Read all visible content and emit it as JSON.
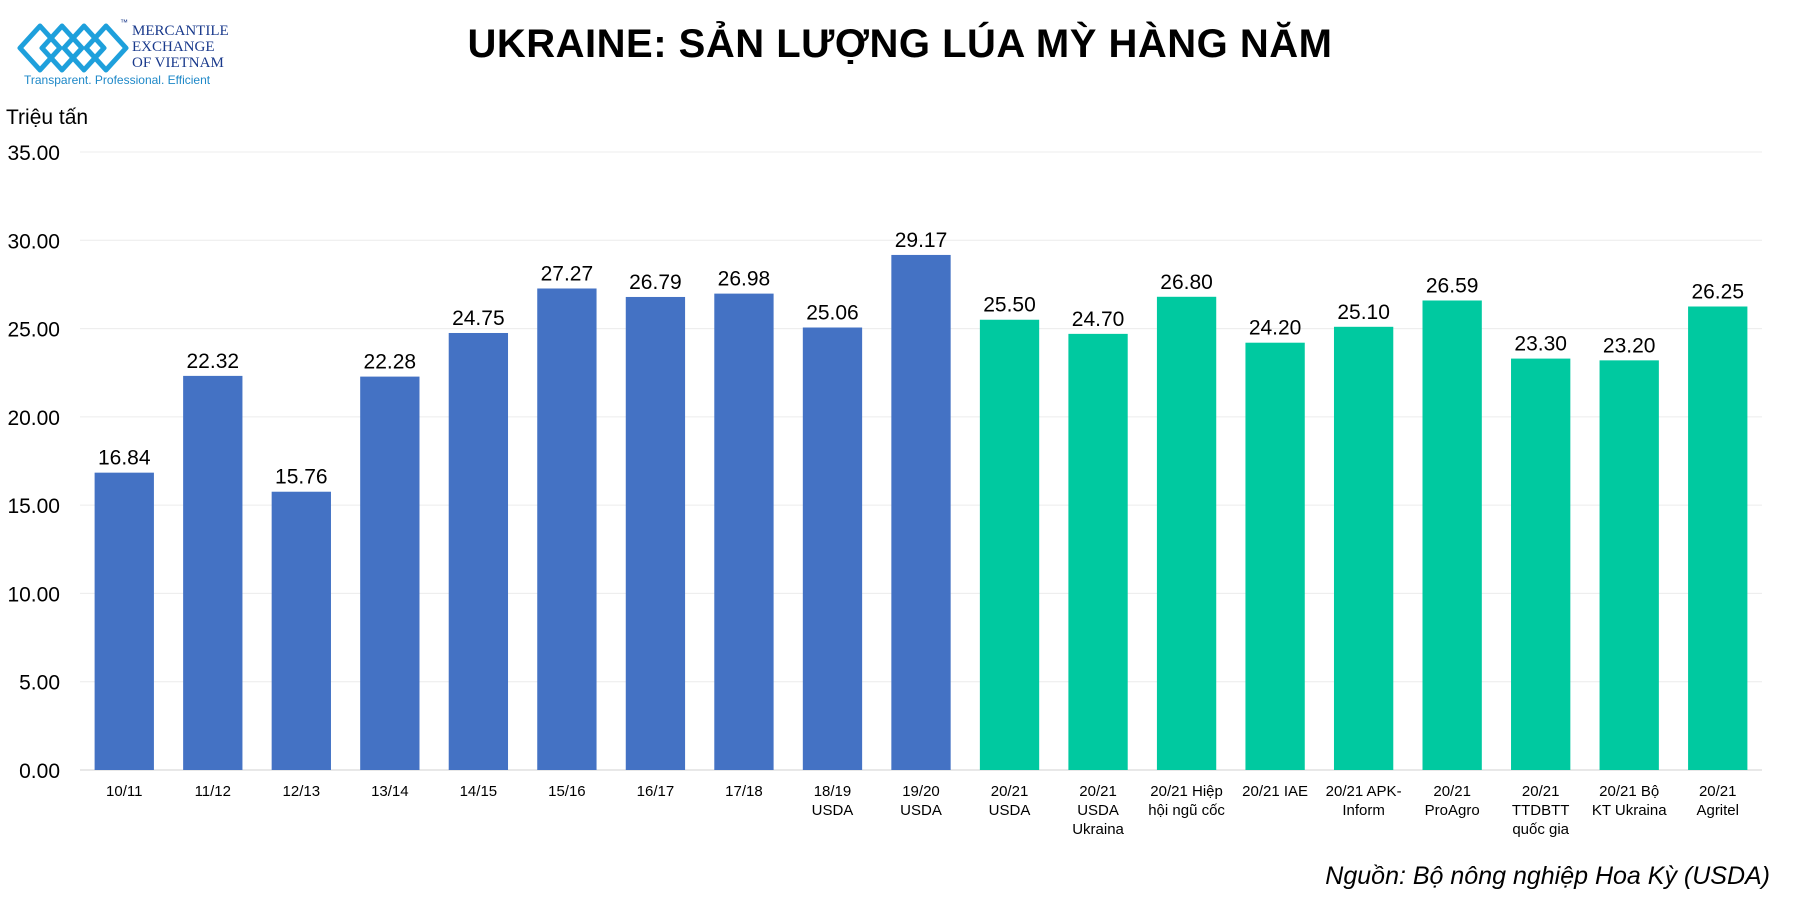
{
  "logo": {
    "line1": "MERCANTILE",
    "line2": "EXCHANGE",
    "line3": "OF VIETNAM",
    "tm": "™",
    "tagline": "Transparent. Professional. Efficient",
    "text_color": "#1a3a8c",
    "tagline_color": "#1e88c8",
    "mark_color": "#1ea0dc"
  },
  "header": {
    "title": "UKRAINE: SẢN LƯỢNG LÚA MỲ HÀNG NĂM",
    "unit": "Triệu tấn"
  },
  "footer": {
    "source": "Nguồn: Bộ nông nghiệp Hoa Kỳ (USDA)"
  },
  "chart_data": {
    "type": "bar",
    "title": "UKRAINE: SẢN LƯỢNG LÚA MỲ HÀNG NĂM",
    "ylabel": "Triệu tấn",
    "ylim": [
      0,
      35
    ],
    "yticks": [
      "0.00",
      "5.00",
      "10.00",
      "15.00",
      "20.00",
      "25.00",
      "30.00",
      "35.00"
    ],
    "grid": true,
    "legend": "none",
    "colors": {
      "historical": "#4472c4",
      "forecast": "#00c9a0",
      "grid": "#ececec",
      "axis": "#d0d0d0"
    },
    "categories": [
      [
        "10/11"
      ],
      [
        "11/12"
      ],
      [
        "12/13"
      ],
      [
        "13/14"
      ],
      [
        "14/15"
      ],
      [
        "15/16"
      ],
      [
        "16/17"
      ],
      [
        "17/18"
      ],
      [
        "18/19",
        "USDA"
      ],
      [
        "19/20",
        "USDA"
      ],
      [
        "20/21",
        "USDA"
      ],
      [
        "20/21",
        "USDA",
        "Ukraina"
      ],
      [
        "20/21 Hiệp",
        "hội ngũ cốc"
      ],
      [
        "20/21 IAE"
      ],
      [
        "20/21 APK-",
        "Inform"
      ],
      [
        "20/21",
        "ProAgro"
      ],
      [
        "20/21",
        "TTDBTT",
        "quốc gia"
      ],
      [
        "20/21 Bộ",
        "KT Ukraina"
      ],
      [
        "20/21",
        "Agritel"
      ]
    ],
    "values": [
      16.84,
      22.32,
      15.76,
      22.28,
      24.75,
      27.27,
      26.79,
      26.98,
      25.06,
      29.17,
      25.5,
      24.7,
      26.8,
      24.2,
      25.1,
      26.59,
      23.3,
      23.2,
      26.25
    ],
    "value_labels": [
      "16.84",
      "22.32",
      "15.76",
      "22.28",
      "24.75",
      "27.27",
      "26.79",
      "26.98",
      "25.06",
      "29.17",
      "25.50",
      "24.70",
      "26.80",
      "24.20",
      "25.10",
      "26.59",
      "23.30",
      "23.20",
      "26.25"
    ],
    "group": [
      "historical",
      "historical",
      "historical",
      "historical",
      "historical",
      "historical",
      "historical",
      "historical",
      "historical",
      "historical",
      "forecast",
      "forecast",
      "forecast",
      "forecast",
      "forecast",
      "forecast",
      "forecast",
      "forecast",
      "forecast"
    ]
  }
}
